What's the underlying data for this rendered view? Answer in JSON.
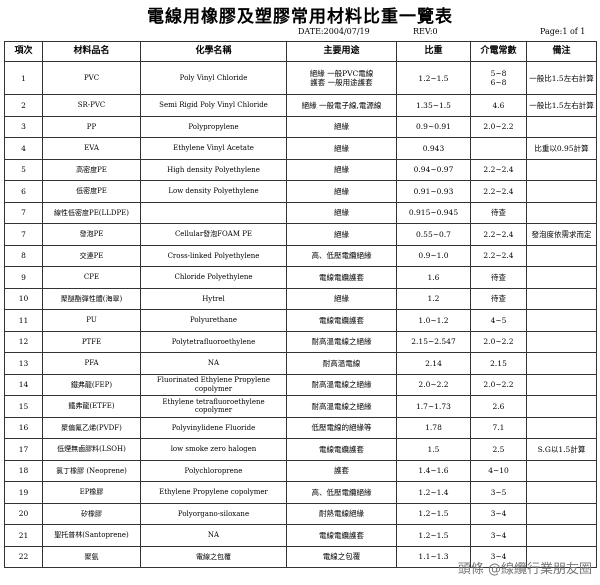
{
  "header": {
    "title": "電線用橡膠及塑膠常用材料比重一覽表",
    "date": "DATE:2004/07/19",
    "rev": "REV:0",
    "page": "Page:1 of 1"
  },
  "table": {
    "columns": [
      "項次",
      "材料品名",
      "化學名稱",
      "主要用途",
      "比重",
      "介電常數",
      "備注"
    ],
    "rows": [
      {
        "no": "1",
        "name": "PVC",
        "chem": "Poly Vinyl Chloride",
        "use": [
          "絕緣 一般PVC電線",
          "護套 一般用途護套"
        ],
        "sg": "1.2~1.5",
        "dk": [
          "5~8",
          "6~8"
        ],
        "note": "一般比1.5左右計算"
      },
      {
        "no": "2",
        "name": "SR-PVC",
        "chem": "Semi Rigid Poly Vinyl Chloride",
        "use": [
          "絕緣 一般電子線,電源線"
        ],
        "sg": "1.35~1.5",
        "dk": [
          "4.6"
        ],
        "note": "一般比1.5左右計算"
      },
      {
        "no": "3",
        "name": "PP",
        "chem": "Polypropylene",
        "use": [
          "絕緣"
        ],
        "sg": "0.9~0.91",
        "dk": [
          "2.0~2.2"
        ]
      },
      {
        "no": "4",
        "name": "EVA",
        "chem": "Ethylene Vinyl Acetate",
        "use": [
          "絕緣"
        ],
        "sg": "0.943",
        "note": "比重以0.95計算"
      },
      {
        "no": "5",
        "name": "高密度PE",
        "chem": "High density Polyethylene",
        "use": [
          "絕緣"
        ],
        "sg": "0.94~0.97",
        "dk": [
          "2.2~2.4"
        ]
      },
      {
        "no": "6",
        "name": "低密度PE",
        "chem": "Low density Polyethylene",
        "use": [
          "絕緣"
        ],
        "sg": "0.91~0.93",
        "dk": [
          "2.2~2.4"
        ]
      },
      {
        "no": "7",
        "name": "線性低密度PE(LLDPE)",
        "use": [
          "絕緣"
        ],
        "sg": "0.915~0.945",
        "dk": [
          "待查"
        ]
      },
      {
        "no": "7",
        "name": "發泡PE",
        "chem": "Cellular發泡FOAM PE",
        "use": [
          "絕緣"
        ],
        "sg": "0.55~0.7",
        "dk": [
          "2.2~2.4"
        ],
        "note": "發泡度依需求而定"
      },
      {
        "no": "8",
        "name": "交連PE",
        "chem": "Cross-linked Polyethylene",
        "use": [
          "高、低壓電纜絕緣"
        ],
        "sg": "0.9~1.0",
        "dk": [
          "2.2~2.4"
        ]
      },
      {
        "no": "9",
        "name": "CPE",
        "chem": "Chloride Polyethylene",
        "use": [
          "電線電纜護套"
        ],
        "sg": "1.6",
        "dk": [
          "待查"
        ]
      },
      {
        "no": "10",
        "name": "聚醚酯彈性體(海翠)",
        "chem": "Hytrel",
        "use": [
          "絕緣"
        ],
        "sg": "1.2",
        "dk": [
          "待查"
        ]
      },
      {
        "no": "11",
        "name": "PU",
        "chem": "Polyurethane",
        "use": [
          "電線電纜護套"
        ],
        "sg": "1.0~1.2",
        "dk": [
          "4~5"
        ]
      },
      {
        "no": "12",
        "name": "PTFE",
        "chem": "Polytetrafluoroethylene",
        "use": [
          "耐高溫電線之絕緣"
        ],
        "sg": "2.15~2.547",
        "dk": [
          "2.0~2.2"
        ]
      },
      {
        "no": "13",
        "name": "PFA",
        "chem": "NA",
        "use": [
          "耐高溫電線"
        ],
        "sg": "2.14",
        "dk": [
          "2.15"
        ]
      },
      {
        "no": "14",
        "name": "鐵弗龍(FEP)",
        "chem": "Fluorinated Ethylene Propylene copolymer",
        "use": [
          "耐高溫電線之絕緣"
        ],
        "sg": "2.0~2.2",
        "dk": [
          "2.0~2.2"
        ]
      },
      {
        "no": "15",
        "name": "鐵弗龍(ETFE)",
        "chem": "Ethylene tetrafluoroethylene copolymer",
        "use": [
          "耐高溫電線之絕緣"
        ],
        "sg": "1.7~1.73",
        "dk": [
          "2.6"
        ]
      },
      {
        "no": "16",
        "name": "聚偏氟乙烯(PVDF)",
        "chem": "Polyvinylidene Fluoride",
        "use": [
          "低壓電線的絕緣等"
        ],
        "sg": "1.78",
        "dk": [
          "7.1"
        ]
      },
      {
        "no": "17",
        "name": "低煙無鹵膠料(LSOH)",
        "chem": "low smoke zero halogen",
        "use": [
          "電線電纜護套"
        ],
        "sg": "1.5",
        "dk": [
          "2.5"
        ],
        "note": "S.G以1.5計算"
      },
      {
        "no": "18",
        "name": "氯丁橡膠 (Neoprene)",
        "chem": "Polychloroprene",
        "use": [
          "護套"
        ],
        "sg": "1.4~1.6",
        "dk": [
          "4~10"
        ]
      },
      {
        "no": "19",
        "name": "EP橡膠",
        "chem": "Ethylene Propylene copolymer",
        "use": [
          "高、低壓電纜絕緣"
        ],
        "sg": "1.2~1.4",
        "dk": [
          "3~5"
        ]
      },
      {
        "no": "20",
        "name": "矽橡膠",
        "chem": "Polyorgano-siloxane",
        "use": [
          "耐熱電線絕緣"
        ],
        "sg": "1.2~1.5",
        "dk": [
          "3~4"
        ]
      },
      {
        "no": "21",
        "name": "聖托普林(Santoprene)",
        "chem": "NA",
        "use": [
          "電線電纜護套"
        ],
        "sg": "1.2~1.5",
        "dk": [
          "3~4"
        ]
      },
      {
        "no": "22",
        "name": "聚氨",
        "chem": "電線之包覆",
        "use": [
          "電線之包覆"
        ],
        "sg": "1.1~1.3",
        "dk": [
          "3~4"
        ]
      }
    ]
  },
  "watermark": "頭條 @線纜行業朋友圈"
}
